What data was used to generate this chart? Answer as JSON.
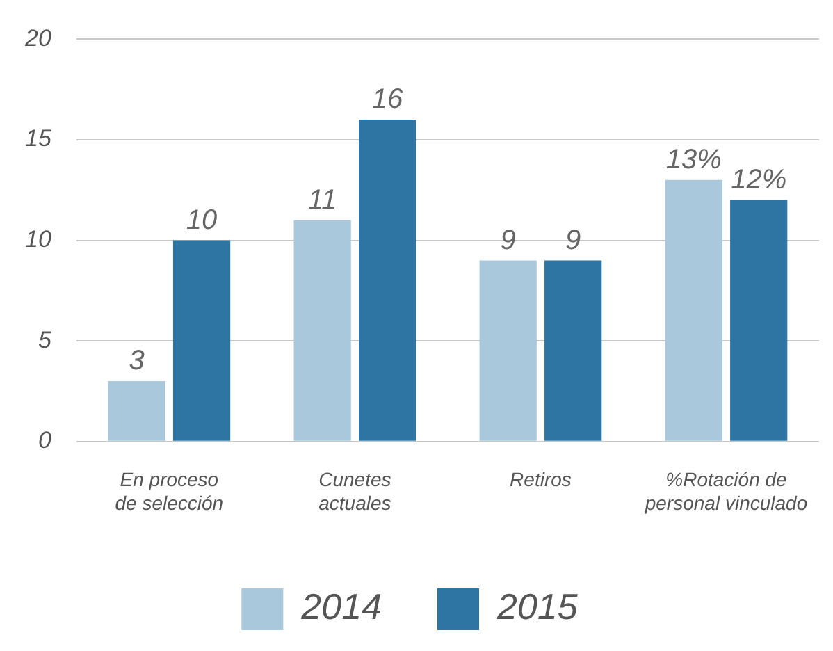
{
  "chart_data": {
    "type": "bar",
    "categories": [
      "En proceso de selección",
      "Cunetes actuales",
      "Retiros",
      "%Rotación de personal vinculado"
    ],
    "series": [
      {
        "name": "2014",
        "color": "#a9c8db",
        "values": [
          3,
          11,
          9,
          13
        ],
        "value_labels": [
          "3",
          "11",
          "9",
          "13%"
        ]
      },
      {
        "name": "2015",
        "color": "#2e75a4",
        "values": [
          10,
          16,
          9,
          12
        ],
        "value_labels": [
          "10",
          "16",
          "9",
          "12%"
        ]
      }
    ],
    "ylim": [
      0,
      20
    ],
    "yticks": [
      0,
      5,
      10,
      15,
      20
    ],
    "grid": "y",
    "legend": "bottom"
  }
}
